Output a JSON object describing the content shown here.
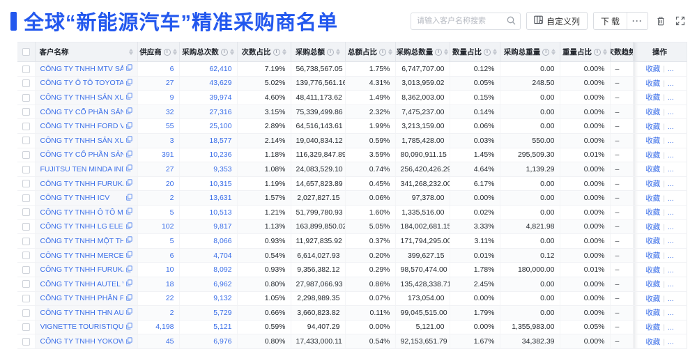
{
  "page": {
    "title": "全球“新能源汽车”精准采购商名单"
  },
  "toolbar": {
    "search_placeholder": "请输入客户名称搜索",
    "customize_columns_label": "自定义列",
    "download_label": "下载",
    "more_label": "···",
    "icons": [
      "search-icon",
      "customize-columns-icon",
      "trash-icon",
      "fullscreen-icon"
    ]
  },
  "table": {
    "columns": [
      {
        "key": "cb",
        "label": "",
        "type": "checkbox",
        "info": false,
        "sort": false
      },
      {
        "key": "name",
        "label": "客户名称",
        "type": "name",
        "info": false,
        "sort": true
      },
      {
        "key": "suppliers",
        "label": "供应商",
        "type": "link",
        "info": true,
        "sort": true
      },
      {
        "key": "purchases",
        "label": "采购总次数",
        "type": "link",
        "info": true,
        "sort": true
      },
      {
        "key": "count_pct",
        "label": "次数占比",
        "type": "num",
        "info": true,
        "sort": true
      },
      {
        "key": "amount",
        "label": "采购总额",
        "type": "num",
        "info": true,
        "sort": true
      },
      {
        "key": "amount_pct",
        "label": "总额占比",
        "type": "num",
        "info": true,
        "sort": true
      },
      {
        "key": "quantity",
        "label": "采购总数量",
        "type": "num",
        "info": true,
        "sort": true
      },
      {
        "key": "quantity_pct",
        "label": "数量占比",
        "type": "num",
        "info": true,
        "sort": true
      },
      {
        "key": "weight",
        "label": "采购总重量",
        "type": "num",
        "info": true,
        "sort": true
      },
      {
        "key": "weight_pct",
        "label": "重量占比",
        "type": "num",
        "info": true,
        "sort": true
      },
      {
        "key": "trend",
        "label": "次数趋势",
        "type": "trend",
        "info": false,
        "sort": false
      },
      {
        "key": "actions",
        "label": "操作",
        "type": "actions",
        "info": false,
        "sort": false
      }
    ],
    "actions": {
      "favorite": "收藏",
      "separator": "|",
      "more": "..."
    },
    "rows": [
      {
        "name": "CÔNG TY TNHH MTV SẢN XUẤ...",
        "suppliers": "6",
        "purchases": "62,410",
        "count_pct": "7.19%",
        "amount": "56,738,567.05",
        "amount_pct": "1.75%",
        "quantity": "6,747,707.00",
        "quantity_pct": "0.12%",
        "weight": "0.00",
        "weight_pct": "0.00%",
        "trend": "–"
      },
      {
        "name": "CÔNG TY Ô TÔ TOYOTA VIỆT ...",
        "suppliers": "27",
        "purchases": "43,629",
        "count_pct": "5.02%",
        "amount": "139,776,561.16",
        "amount_pct": "4.31%",
        "quantity": "3,013,959.02",
        "quantity_pct": "0.05%",
        "weight": "248.50",
        "weight_pct": "0.00%",
        "trend": "–"
      },
      {
        "name": "CÔNG TY TNHH SẢN XUẤT VÀ ...",
        "suppliers": "9",
        "purchases": "39,974",
        "count_pct": "4.60%",
        "amount": "48,411,173.62",
        "amount_pct": "1.49%",
        "quantity": "8,362,003.00",
        "quantity_pct": "0.15%",
        "weight": "0.00",
        "weight_pct": "0.00%",
        "trend": "–"
      },
      {
        "name": "CÔNG TY CỔ PHẦN SẢN XUẤT...",
        "suppliers": "32",
        "purchases": "27,316",
        "count_pct": "3.15%",
        "amount": "75,339,499.86",
        "amount_pct": "2.32%",
        "quantity": "7,475,237.00",
        "quantity_pct": "0.14%",
        "weight": "0.00",
        "weight_pct": "0.00%",
        "trend": "–"
      },
      {
        "name": "CÔNG TY TNHH FORD VIỆT NAM",
        "suppliers": "55",
        "purchases": "25,100",
        "count_pct": "2.89%",
        "amount": "64,516,143.61",
        "amount_pct": "1.99%",
        "quantity": "3,213,159.00",
        "quantity_pct": "0.06%",
        "weight": "0.00",
        "weight_pct": "0.00%",
        "trend": "–"
      },
      {
        "name": "CÔNG TY TNHH SẢN XUẤT VÀ ...",
        "suppliers": "3",
        "purchases": "18,577",
        "count_pct": "2.14%",
        "amount": "19,040,834.12",
        "amount_pct": "0.59%",
        "quantity": "1,785,428.00",
        "quantity_pct": "0.03%",
        "weight": "550.00",
        "weight_pct": "0.00%",
        "trend": "–"
      },
      {
        "name": "CÔNG TY CỔ PHẦN SẢN XUẤT...",
        "suppliers": "391",
        "purchases": "10,236",
        "count_pct": "1.18%",
        "amount": "116,329,847.89",
        "amount_pct": "3.59%",
        "quantity": "80,090,911.15",
        "quantity_pct": "1.45%",
        "weight": "295,509.30",
        "weight_pct": "0.01%",
        "trend": "–"
      },
      {
        "name": "FUJITSU TEN MINDA INDIA PVT...",
        "suppliers": "27",
        "purchases": "9,353",
        "count_pct": "1.08%",
        "amount": "24,083,529.10",
        "amount_pct": "0.74%",
        "quantity": "256,420,426.29",
        "quantity_pct": "4.64%",
        "weight": "1,139.29",
        "weight_pct": "0.00%",
        "trend": "–"
      },
      {
        "name": "CÔNG TY TNHH FURUKAWA A...",
        "suppliers": "20",
        "purchases": "10,315",
        "count_pct": "1.19%",
        "amount": "14,657,823.89",
        "amount_pct": "0.45%",
        "quantity": "341,268,232.00",
        "quantity_pct": "6.17%",
        "weight": "0.00",
        "weight_pct": "0.00%",
        "trend": "–"
      },
      {
        "name": "CÔNG TY TNHH ICV",
        "suppliers": "2",
        "purchases": "13,631",
        "count_pct": "1.57%",
        "amount": "2,027,827.15",
        "amount_pct": "0.06%",
        "quantity": "97,378.00",
        "quantity_pct": "0.00%",
        "weight": "0.00",
        "weight_pct": "0.00%",
        "trend": "–"
      },
      {
        "name": "CÔNG TY TNHH Ô TÔ MITSUBI...",
        "suppliers": "5",
        "purchases": "10,513",
        "count_pct": "1.21%",
        "amount": "51,799,780.93",
        "amount_pct": "1.60%",
        "quantity": "1,335,516.00",
        "quantity_pct": "0.02%",
        "weight": "0.00",
        "weight_pct": "0.00%",
        "trend": "–"
      },
      {
        "name": "CÔNG TY TNHH LG ELECTRON...",
        "suppliers": "102",
        "purchases": "9,817",
        "count_pct": "1.13%",
        "amount": "163,899,850.02",
        "amount_pct": "5.05%",
        "quantity": "184,002,681.15",
        "quantity_pct": "3.33%",
        "weight": "4,821.98",
        "weight_pct": "0.00%",
        "trend": "–"
      },
      {
        "name": "CÔNG TY TNHH MỘT THÀNH V...",
        "suppliers": "5",
        "purchases": "8,066",
        "count_pct": "0.93%",
        "amount": "11,927,835.92",
        "amount_pct": "0.37%",
        "quantity": "171,794,295.00",
        "quantity_pct": "3.11%",
        "weight": "0.00",
        "weight_pct": "0.00%",
        "trend": "–"
      },
      {
        "name": "CÔNG TY TNHH MERCEDES-B...",
        "suppliers": "6",
        "purchases": "4,704",
        "count_pct": "0.54%",
        "amount": "6,614,027.93",
        "amount_pct": "0.20%",
        "quantity": "399,627.15",
        "quantity_pct": "0.01%",
        "weight": "0.12",
        "weight_pct": "0.00%",
        "trend": "–"
      },
      {
        "name": "CÔNG TY TNHH FURUKAWA A...",
        "suppliers": "10",
        "purchases": "8,092",
        "count_pct": "0.93%",
        "amount": "9,356,382.12",
        "amount_pct": "0.29%",
        "quantity": "98,570,474.00",
        "quantity_pct": "1.78%",
        "weight": "180,000.00",
        "weight_pct": "0.01%",
        "trend": "–"
      },
      {
        "name": "CÔNG TY TNHH AUTEL VIỆT N...",
        "suppliers": "18",
        "purchases": "6,962",
        "count_pct": "0.80%",
        "amount": "27,987,066.93",
        "amount_pct": "0.86%",
        "quantity": "135,428,338.71",
        "quantity_pct": "2.45%",
        "weight": "0.00",
        "weight_pct": "0.00%",
        "trend": "–"
      },
      {
        "name": "CÔNG TY TNHH PHÂN PHỐI T...",
        "suppliers": "22",
        "purchases": "9,132",
        "count_pct": "1.05%",
        "amount": "2,298,989.35",
        "amount_pct": "0.07%",
        "quantity": "173,054.00",
        "quantity_pct": "0.00%",
        "weight": "0.00",
        "weight_pct": "0.00%",
        "trend": "–"
      },
      {
        "name": "CÔNG TY TNHH THN AUTOPAR...",
        "suppliers": "2",
        "purchases": "5,729",
        "count_pct": "0.66%",
        "amount": "3,660,823.82",
        "amount_pct": "0.11%",
        "quantity": "99,045,515.00",
        "quantity_pct": "1.79%",
        "weight": "0.00",
        "weight_pct": "0.00%",
        "trend": "–"
      },
      {
        "name": "VIGNETTE TOURISTIQUE G UNI...",
        "suppliers": "4,198",
        "purchases": "5,121",
        "count_pct": "0.59%",
        "amount": "94,407.29",
        "amount_pct": "0.00%",
        "quantity": "5,121.00",
        "quantity_pct": "0.00%",
        "weight": "1,355,983.00",
        "weight_pct": "0.05%",
        "trend": "–"
      },
      {
        "name": "CÔNG TY TNHH YOKOWO VIỆT...",
        "suppliers": "45",
        "purchases": "6,976",
        "count_pct": "0.80%",
        "amount": "17,433,000.11",
        "amount_pct": "0.54%",
        "quantity": "92,153,651.79",
        "quantity_pct": "1.67%",
        "weight": "34,382.39",
        "weight_pct": "0.00%",
        "trend": "–"
      }
    ]
  },
  "colors": {
    "accent": "#2358ee",
    "link": "#3a6ee8",
    "header_bg": "#f1f3f6"
  }
}
